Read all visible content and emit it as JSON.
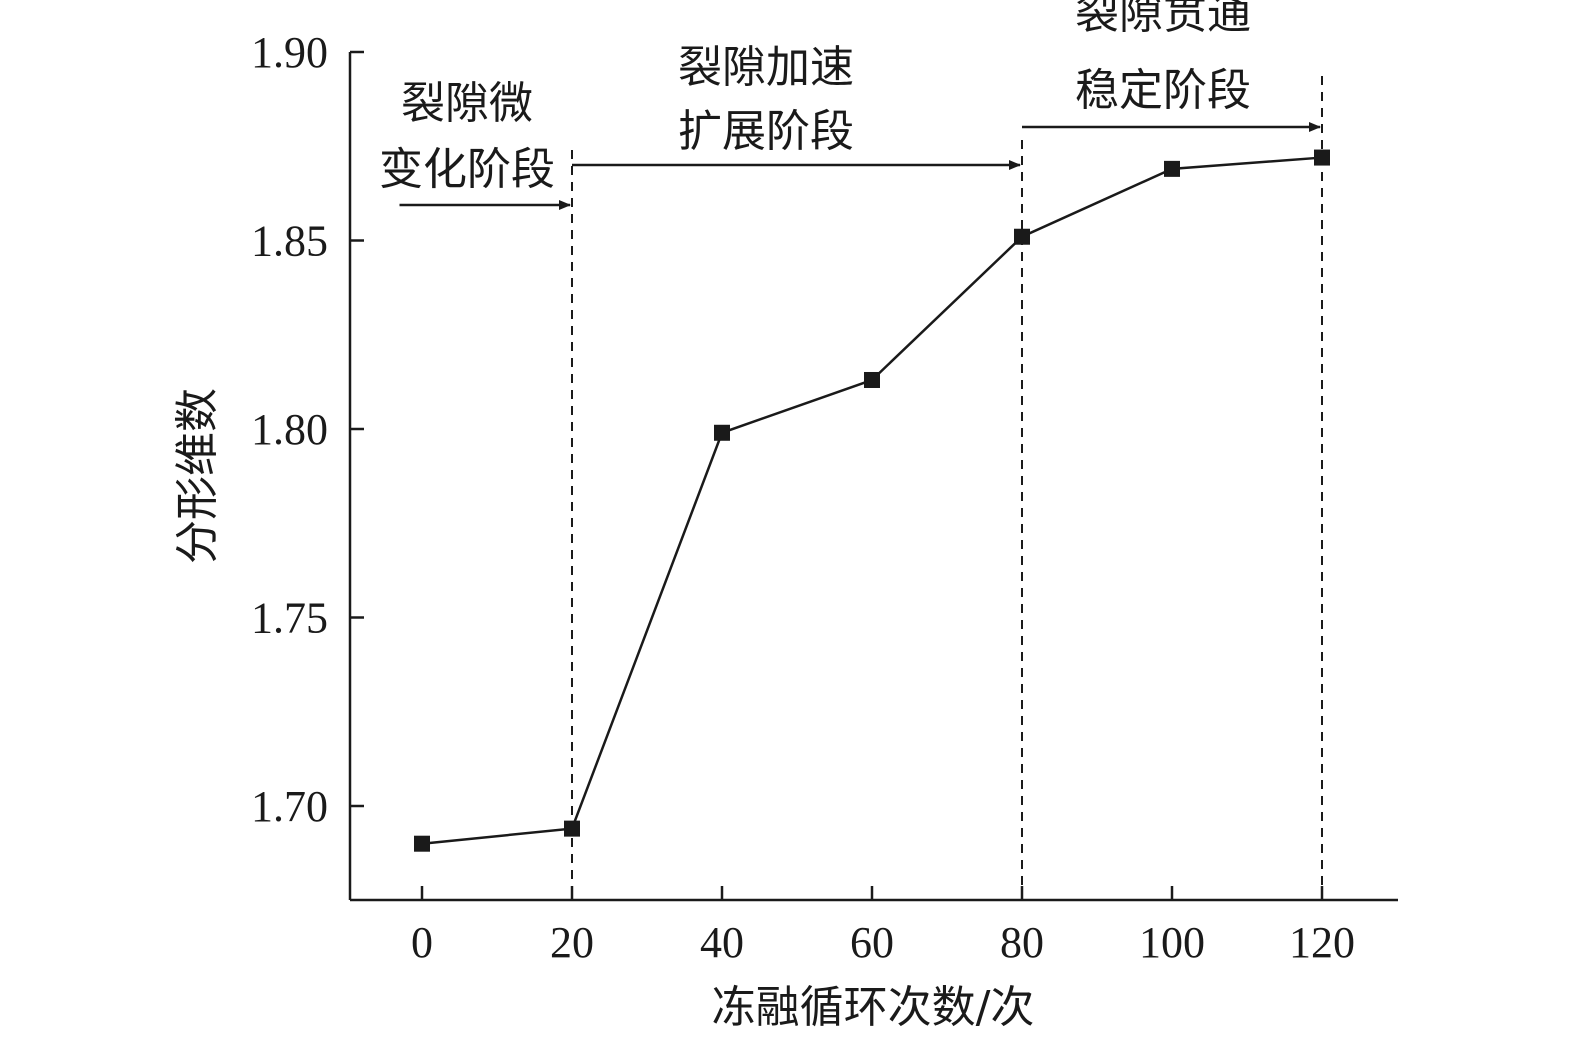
{
  "chart_data": {
    "type": "line",
    "xlabel": "冻融循环次数/次",
    "ylabel": "分形维数",
    "xlim": [
      -10,
      130
    ],
    "ylim": [
      1.675,
      1.9
    ],
    "x_ticks": [
      "0",
      "20",
      "40",
      "60",
      "80",
      "100",
      "120"
    ],
    "y_ticks": [
      "1.70",
      "1.75",
      "1.80",
      "1.85",
      "1.90"
    ],
    "series": [
      {
        "marker": "square",
        "x": [
          0,
          20,
          40,
          60,
          80,
          100,
          120
        ],
        "y": [
          1.69,
          1.694,
          1.799,
          1.813,
          1.851,
          1.869,
          1.872
        ]
      }
    ],
    "stage_boundaries": [
      20,
      80,
      120
    ],
    "stages": [
      {
        "line1": "裂隙微",
        "line2": "变化阶段",
        "from": -3,
        "to": 20
      },
      {
        "line1": "裂隙加速",
        "line2": "扩展阶段",
        "from": 20,
        "to": 80
      },
      {
        "line1": "裂隙贯通",
        "line2": "稳定阶段",
        "from": 80,
        "to": 120
      }
    ],
    "colors": {
      "line": "#1a1a1a",
      "marker": "#1a1a1a",
      "axis": "#1a1a1a"
    },
    "grid": false
  }
}
